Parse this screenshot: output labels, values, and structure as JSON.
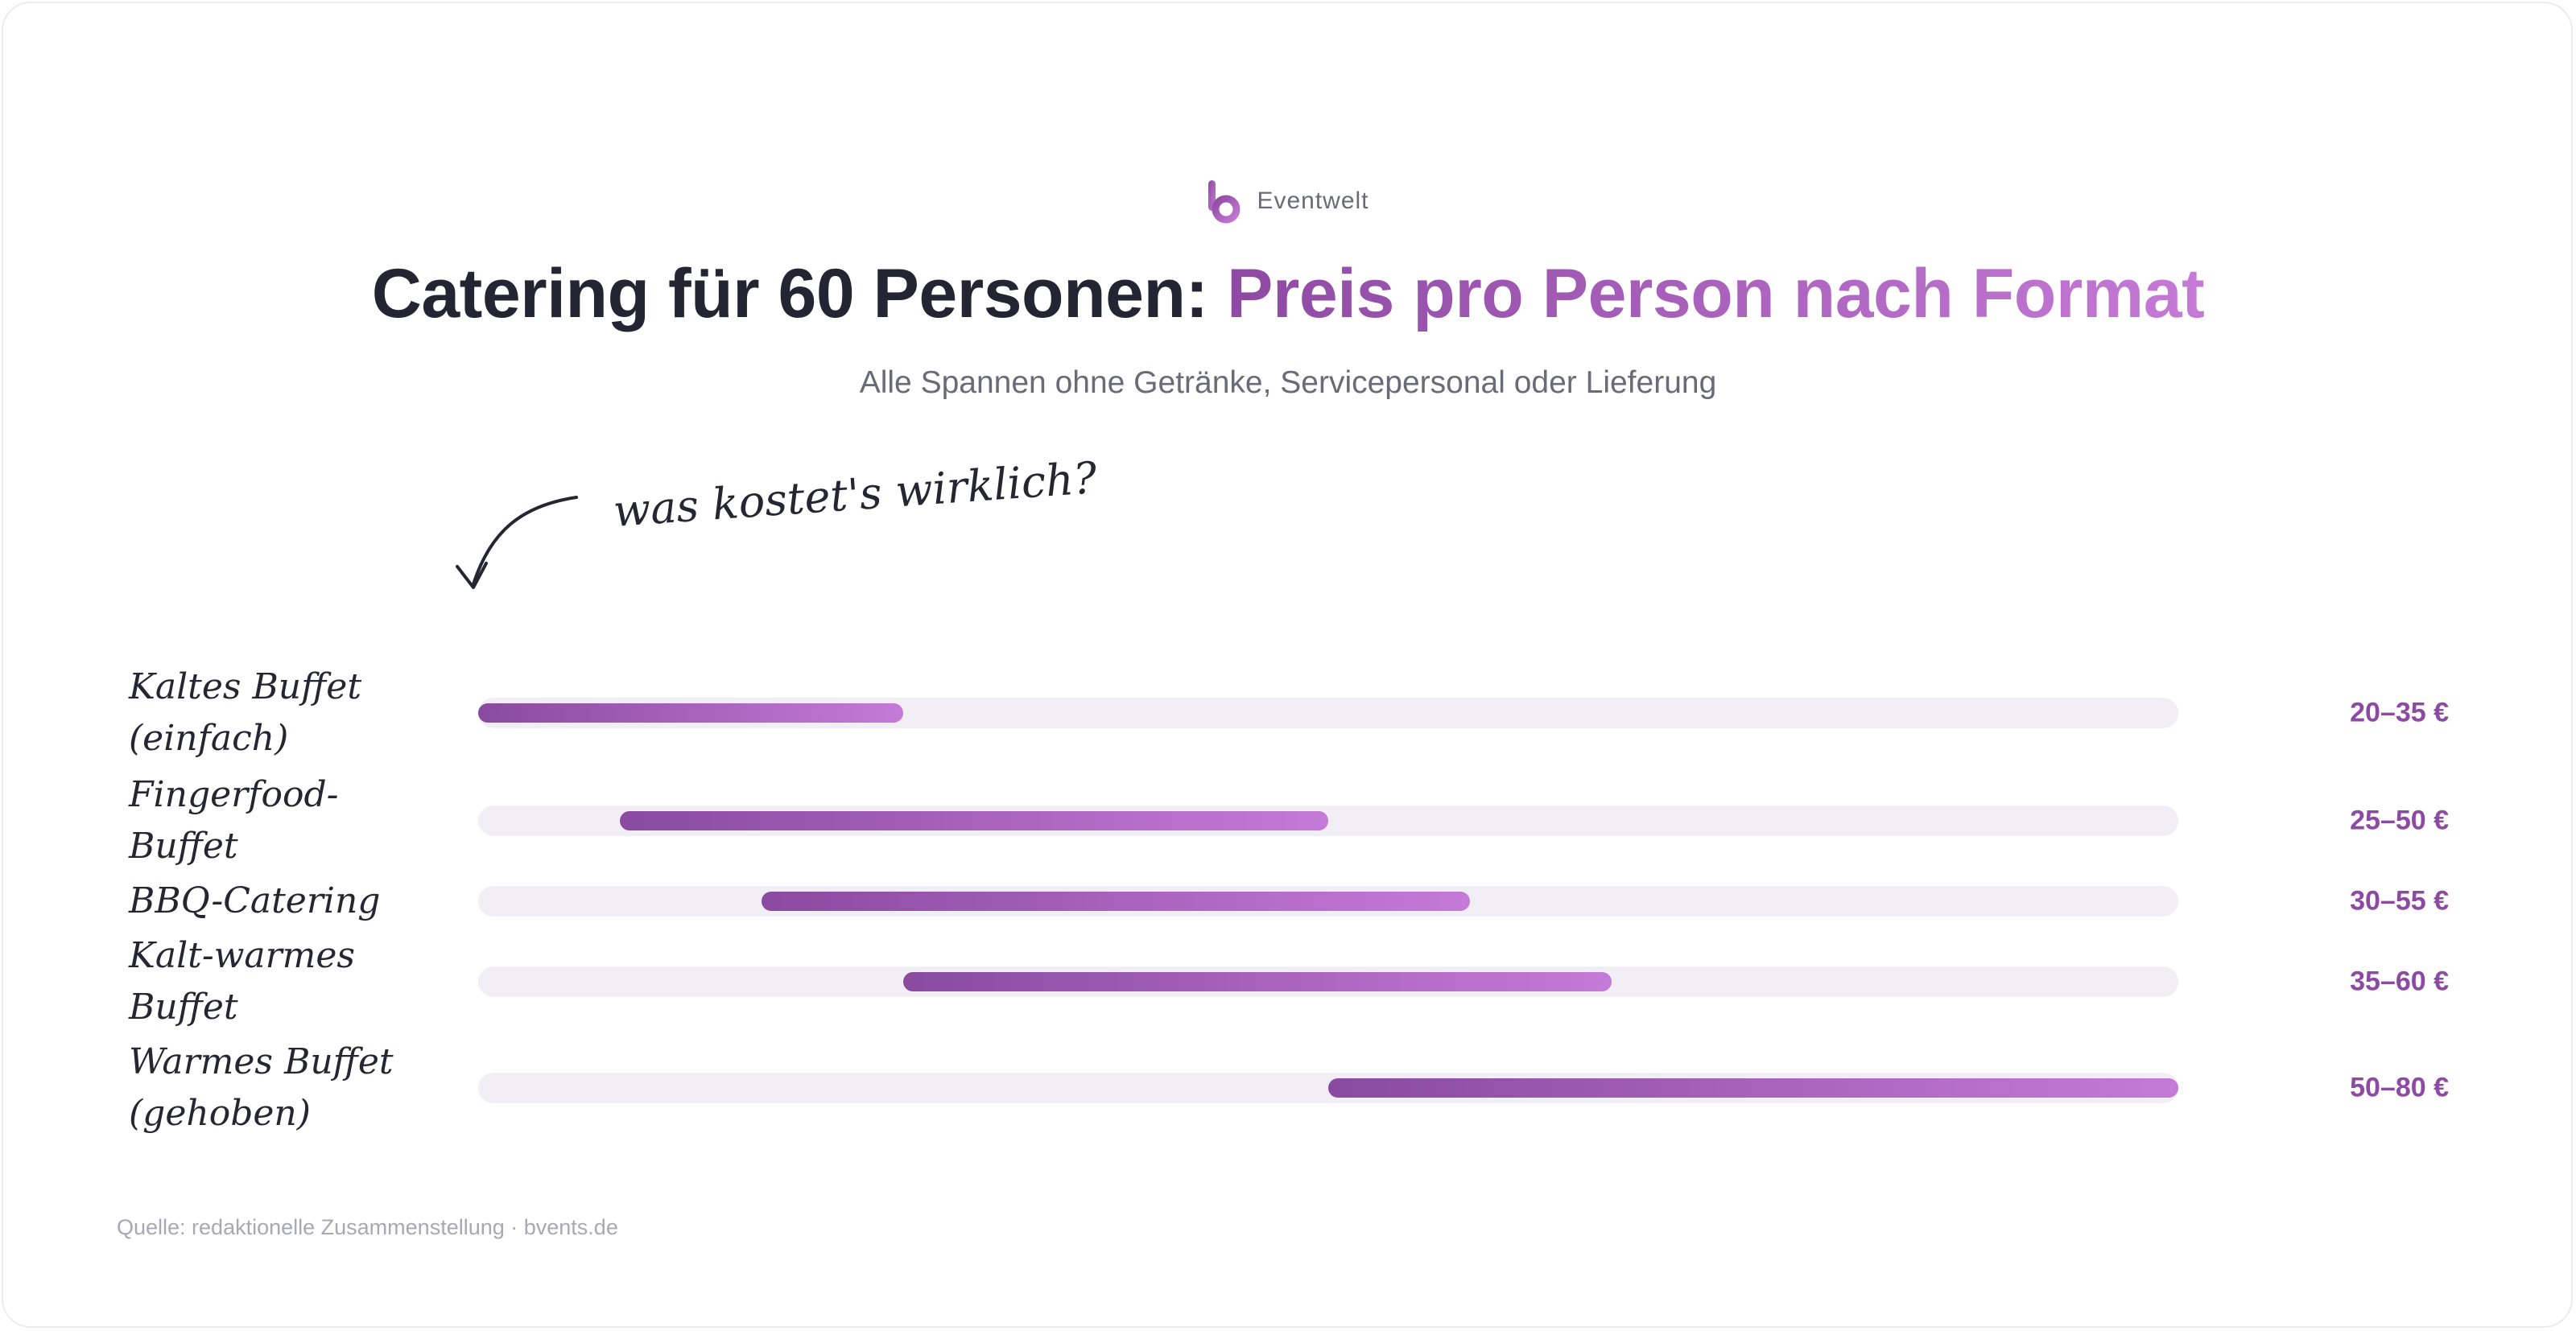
{
  "brand": {
    "name": "Eventwelt",
    "icon": "b-logo-icon"
  },
  "title": {
    "main": "Catering für 60 Personen: ",
    "accent": "Preis pro Person nach Format"
  },
  "subtitle": "Alle Spannen ohne Getränke, Servicepersonal oder Lieferung",
  "annotation": "was kostet's wirklich?",
  "source": "Quelle: redaktionelle Zusammenstellung · bvents.de",
  "colors": {
    "accent_start": "#8a4aa0",
    "accent_end": "#c47ad7",
    "track": "#f1eff5",
    "text": "#252433"
  },
  "chart_data": {
    "type": "bar",
    "orientation": "horizontal-range",
    "unit": "€",
    "xlim": [
      20,
      80
    ],
    "grid": false,
    "categories": [
      "Kaltes Buffet (einfach)",
      "Fingerfood-Buffet",
      "BBQ-Catering",
      "Kalt-warmes Buffet",
      "Warmes Buffet (gehoben)"
    ],
    "rows": [
      {
        "label": "Kaltes Buffet\n(einfach)",
        "min": 20,
        "max": 35,
        "value_label": "20–35 €"
      },
      {
        "label": "Fingerfood-Buffet",
        "min": 25,
        "max": 50,
        "value_label": "25–50 €"
      },
      {
        "label": "BBQ-Catering",
        "min": 30,
        "max": 55,
        "value_label": "30–55 €"
      },
      {
        "label": "Kalt-warmes Buffet",
        "min": 35,
        "max": 60,
        "value_label": "35–60 €"
      },
      {
        "label": "Warmes Buffet\n(gehoben)",
        "min": 50,
        "max": 80,
        "value_label": "50–80 €"
      }
    ]
  }
}
